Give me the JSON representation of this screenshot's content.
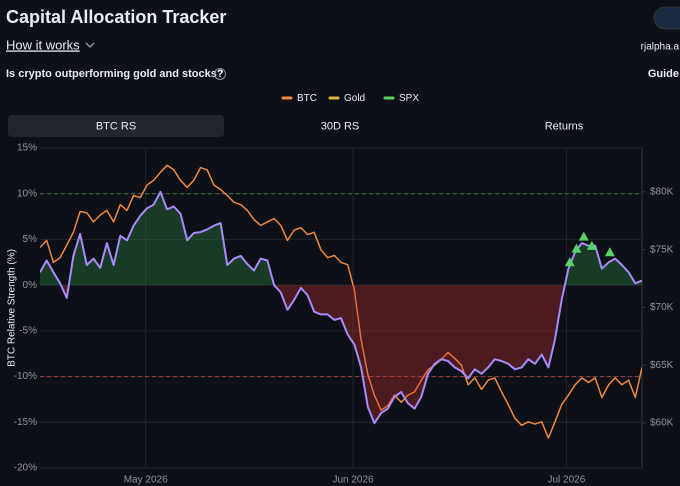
{
  "header": {
    "title": "Capital Allocation Tracker",
    "how_it_works": "How it works",
    "user": "rjalpha.a",
    "question": "Is crypto outperforming gold and stocks?",
    "guide": "Guide"
  },
  "legend": [
    {
      "label": "BTC",
      "color": "#f0883e"
    },
    {
      "label": "Gold",
      "color": "#e3b341"
    },
    {
      "label": "SPX",
      "color": "#56d364"
    }
  ],
  "tabs": [
    {
      "label": "BTC RS",
      "active": true
    },
    {
      "label": "30D RS",
      "active": false
    },
    {
      "label": "Returns",
      "active": false
    }
  ],
  "chart_data": {
    "type": "line",
    "y_label": "BTC Relative Strength (%)",
    "xlim": [
      0,
      90
    ],
    "xticks": [
      {
        "value": 15.8,
        "label": "May 2026"
      },
      {
        "value": 46.8,
        "label": "Jun 2026"
      },
      {
        "value": 78.7,
        "label": "Jul 2026"
      }
    ],
    "ylim": [
      -20,
      15
    ],
    "yticks": [
      {
        "value": -20,
        "label": "-20%"
      },
      {
        "value": -15,
        "label": "-15%"
      },
      {
        "value": -10,
        "label": "-10%"
      },
      {
        "value": -5,
        "label": "-5%"
      },
      {
        "value": 0,
        "label": "0%"
      },
      {
        "value": 5,
        "label": "5%"
      },
      {
        "value": 10,
        "label": "10%"
      },
      {
        "value": 15,
        "label": "15%"
      }
    ],
    "y2lim": [
      56100,
      83800
    ],
    "y2ticks": [
      {
        "value": 60000,
        "label": "$60K"
      },
      {
        "value": 65000,
        "label": "$65K"
      },
      {
        "value": 70000,
        "label": "$70K"
      },
      {
        "value": 75000,
        "label": "$75K"
      },
      {
        "value": 80000,
        "label": "$80K"
      }
    ],
    "grid": true,
    "reference_lines": [
      {
        "value": 10,
        "color": "#3fb950"
      },
      {
        "value": -10,
        "color": "#f85149"
      }
    ],
    "positive_fill": "#2ea043",
    "negative_fill": "#da3633",
    "x": [
      0,
      1,
      2,
      3,
      4,
      5,
      6,
      7,
      8,
      9,
      10,
      11,
      12,
      13,
      14,
      15,
      16,
      17,
      18,
      19,
      20,
      21,
      22,
      23,
      24,
      25,
      26,
      27,
      28,
      29,
      30,
      31,
      32,
      33,
      34,
      35,
      36,
      37,
      38,
      39,
      40,
      41,
      42,
      43,
      44,
      45,
      46,
      47,
      48,
      49,
      50,
      51,
      52,
      53,
      54,
      55,
      56,
      57,
      58,
      59,
      60,
      61,
      62,
      63,
      64,
      65,
      66,
      67,
      68,
      69,
      70,
      71,
      72,
      73,
      74,
      75,
      76,
      77,
      78,
      79,
      80,
      81,
      82,
      83,
      84,
      85,
      86,
      87,
      88,
      89,
      90
    ],
    "series": [
      {
        "color": "#f0883e",
        "axis": "y2",
        "values": [
          75200,
          75800,
          73900,
          74300,
          75400,
          76500,
          78300,
          78200,
          77400,
          78000,
          78400,
          77400,
          78900,
          78400,
          79700,
          79500,
          80600,
          81000,
          81700,
          82300,
          81900,
          81000,
          80400,
          81000,
          82100,
          81900,
          80600,
          80200,
          79700,
          79100,
          78900,
          78400,
          77600,
          77100,
          77400,
          77700,
          77100,
          75800,
          76700,
          76900,
          76300,
          76500,
          75000,
          74300,
          74500,
          73900,
          73700,
          71500,
          67200,
          64200,
          62400,
          61100,
          61500,
          62400,
          61800,
          62400,
          62700,
          63700,
          64600,
          65000,
          65500,
          66100,
          65600,
          65000,
          63300,
          63900,
          62900,
          63700,
          63900,
          62700,
          61600,
          60400,
          59800,
          60100,
          59900,
          60100,
          58700,
          60100,
          61600,
          62400,
          63300,
          63900,
          63500,
          63900,
          62200,
          63300,
          63900,
          63300,
          63700,
          62200,
          64800
        ]
      },
      {
        "color": "#a78bfa",
        "values": [
          1.4,
          2.7,
          1.4,
          0.2,
          -1.4,
          3.2,
          5.6,
          2.2,
          2.9,
          1.9,
          4.6,
          2.2,
          5.4,
          4.9,
          6.5,
          7.6,
          8.4,
          8.8,
          10.2,
          8.3,
          8.6,
          7.8,
          4.9,
          5.7,
          5.8,
          6.1,
          6.5,
          6.8,
          2.2,
          2.9,
          3.2,
          2.3,
          1.6,
          2.9,
          2.7,
          0,
          -0.8,
          -2.7,
          -1.6,
          -0.3,
          -1.1,
          -2.9,
          -3.2,
          -3.2,
          -3.8,
          -3.6,
          -5.4,
          -6.5,
          -9.0,
          -13.3,
          -15.1,
          -14.0,
          -13.5,
          -12.2,
          -11.7,
          -12.9,
          -13.5,
          -12.2,
          -9.7,
          -8.6,
          -8.1,
          -8.3,
          -9.0,
          -9.4,
          -10.2,
          -9.2,
          -9.7,
          -9.0,
          -8.1,
          -8.3,
          -8.6,
          -9.2,
          -9.0,
          -8.1,
          -8.6,
          -7.6,
          -9.0,
          -5.9,
          -1.6,
          1.8,
          3.6,
          4.6,
          4.3,
          4.3,
          1.8,
          2.5,
          2.9,
          2.2,
          1.4,
          0.2,
          0.5
        ]
      }
    ],
    "markers": {
      "color": "#56d364",
      "x": [
        79.2,
        80.2,
        81.3,
        82.5,
        85.2
      ],
      "values": [
        2.5,
        4.0,
        5.3,
        4.3,
        3.6
      ]
    }
  }
}
